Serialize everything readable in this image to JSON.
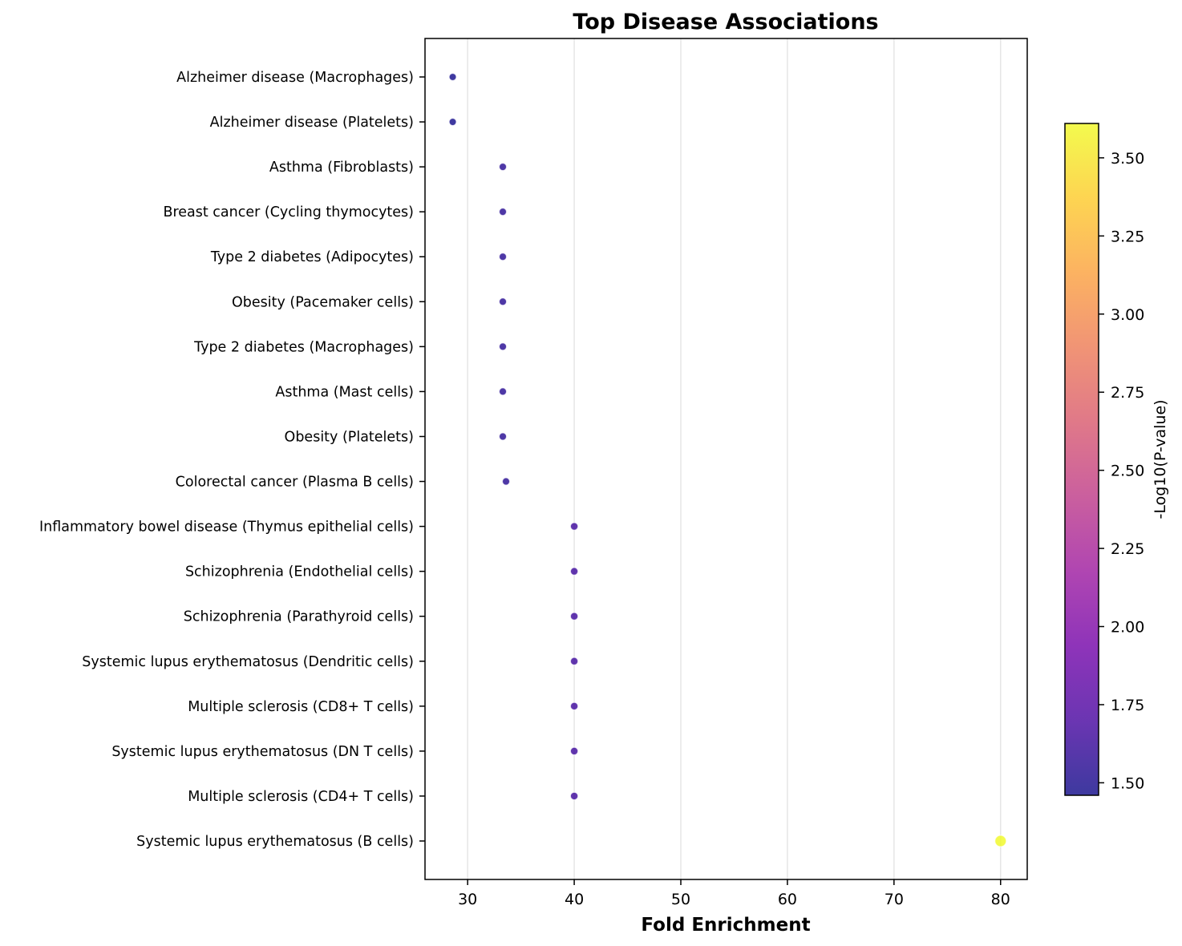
{
  "chart_data": {
    "type": "scatter",
    "title": "Top Disease Associations",
    "xlabel": "Fold Enrichment",
    "ylabel": "",
    "xlim": [
      26,
      82.5
    ],
    "xticks": [
      30,
      40,
      50,
      60,
      70,
      80
    ],
    "grid": "vertical",
    "colorbar": {
      "label": "-Log10(P-value)",
      "colormap": "plasma",
      "range": [
        1.46,
        3.61
      ],
      "ticks": [
        1.5,
        1.75,
        2.0,
        2.25,
        2.5,
        2.75,
        3.0,
        3.25,
        3.5
      ],
      "tick_labels": [
        "1.50",
        "1.75",
        "2.00",
        "2.25",
        "2.50",
        "2.75",
        "3.00",
        "3.25",
        "3.50"
      ],
      "stops": [
        "#0d0887",
        "#46039f",
        "#7201a8",
        "#9c179e",
        "#bd3786",
        "#d8576b",
        "#ed7953",
        "#fb9f3a",
        "#fdca26",
        "#f0f921"
      ]
    },
    "points": [
      {
        "label": "Alzheimer disease (Macrophages)",
        "fold_enrichment": 28.6,
        "neg_log10_p": 1.47
      },
      {
        "label": "Alzheimer disease (Platelets)",
        "fold_enrichment": 28.6,
        "neg_log10_p": 1.47
      },
      {
        "label": "Asthma (Fibroblasts)",
        "fold_enrichment": 33.3,
        "neg_log10_p": 1.55
      },
      {
        "label": "Breast cancer (Cycling thymocytes)",
        "fold_enrichment": 33.3,
        "neg_log10_p": 1.55
      },
      {
        "label": "Type 2 diabetes (Adipocytes)",
        "fold_enrichment": 33.3,
        "neg_log10_p": 1.55
      },
      {
        "label": "Obesity (Pacemaker cells)",
        "fold_enrichment": 33.3,
        "neg_log10_p": 1.55
      },
      {
        "label": "Type 2 diabetes (Macrophages)",
        "fold_enrichment": 33.3,
        "neg_log10_p": 1.55
      },
      {
        "label": "Asthma (Mast cells)",
        "fold_enrichment": 33.3,
        "neg_log10_p": 1.55
      },
      {
        "label": "Obesity (Platelets)",
        "fold_enrichment": 33.3,
        "neg_log10_p": 1.55
      },
      {
        "label": "Colorectal cancer (Plasma B cells)",
        "fold_enrichment": 33.6,
        "neg_log10_p": 1.55
      },
      {
        "label": "Inflammatory bowel disease (Thymus epithelial cells)",
        "fold_enrichment": 40.0,
        "neg_log10_p": 1.65
      },
      {
        "label": "Schizophrenia (Endothelial cells)",
        "fold_enrichment": 40.0,
        "neg_log10_p": 1.65
      },
      {
        "label": "Schizophrenia (Parathyroid cells)",
        "fold_enrichment": 40.0,
        "neg_log10_p": 1.65
      },
      {
        "label": "Systemic lupus erythematosus (Dendritic cells)",
        "fold_enrichment": 40.0,
        "neg_log10_p": 1.65
      },
      {
        "label": "Multiple sclerosis (CD8+ T cells)",
        "fold_enrichment": 40.0,
        "neg_log10_p": 1.65
      },
      {
        "label": "Systemic lupus erythematosus (DN T cells)",
        "fold_enrichment": 40.0,
        "neg_log10_p": 1.65
      },
      {
        "label": "Multiple sclerosis (CD4+ T cells)",
        "fold_enrichment": 40.0,
        "neg_log10_p": 1.65
      },
      {
        "label": "Systemic lupus erythematosus (B cells)",
        "fold_enrichment": 80.0,
        "neg_log10_p": 3.61
      }
    ]
  }
}
